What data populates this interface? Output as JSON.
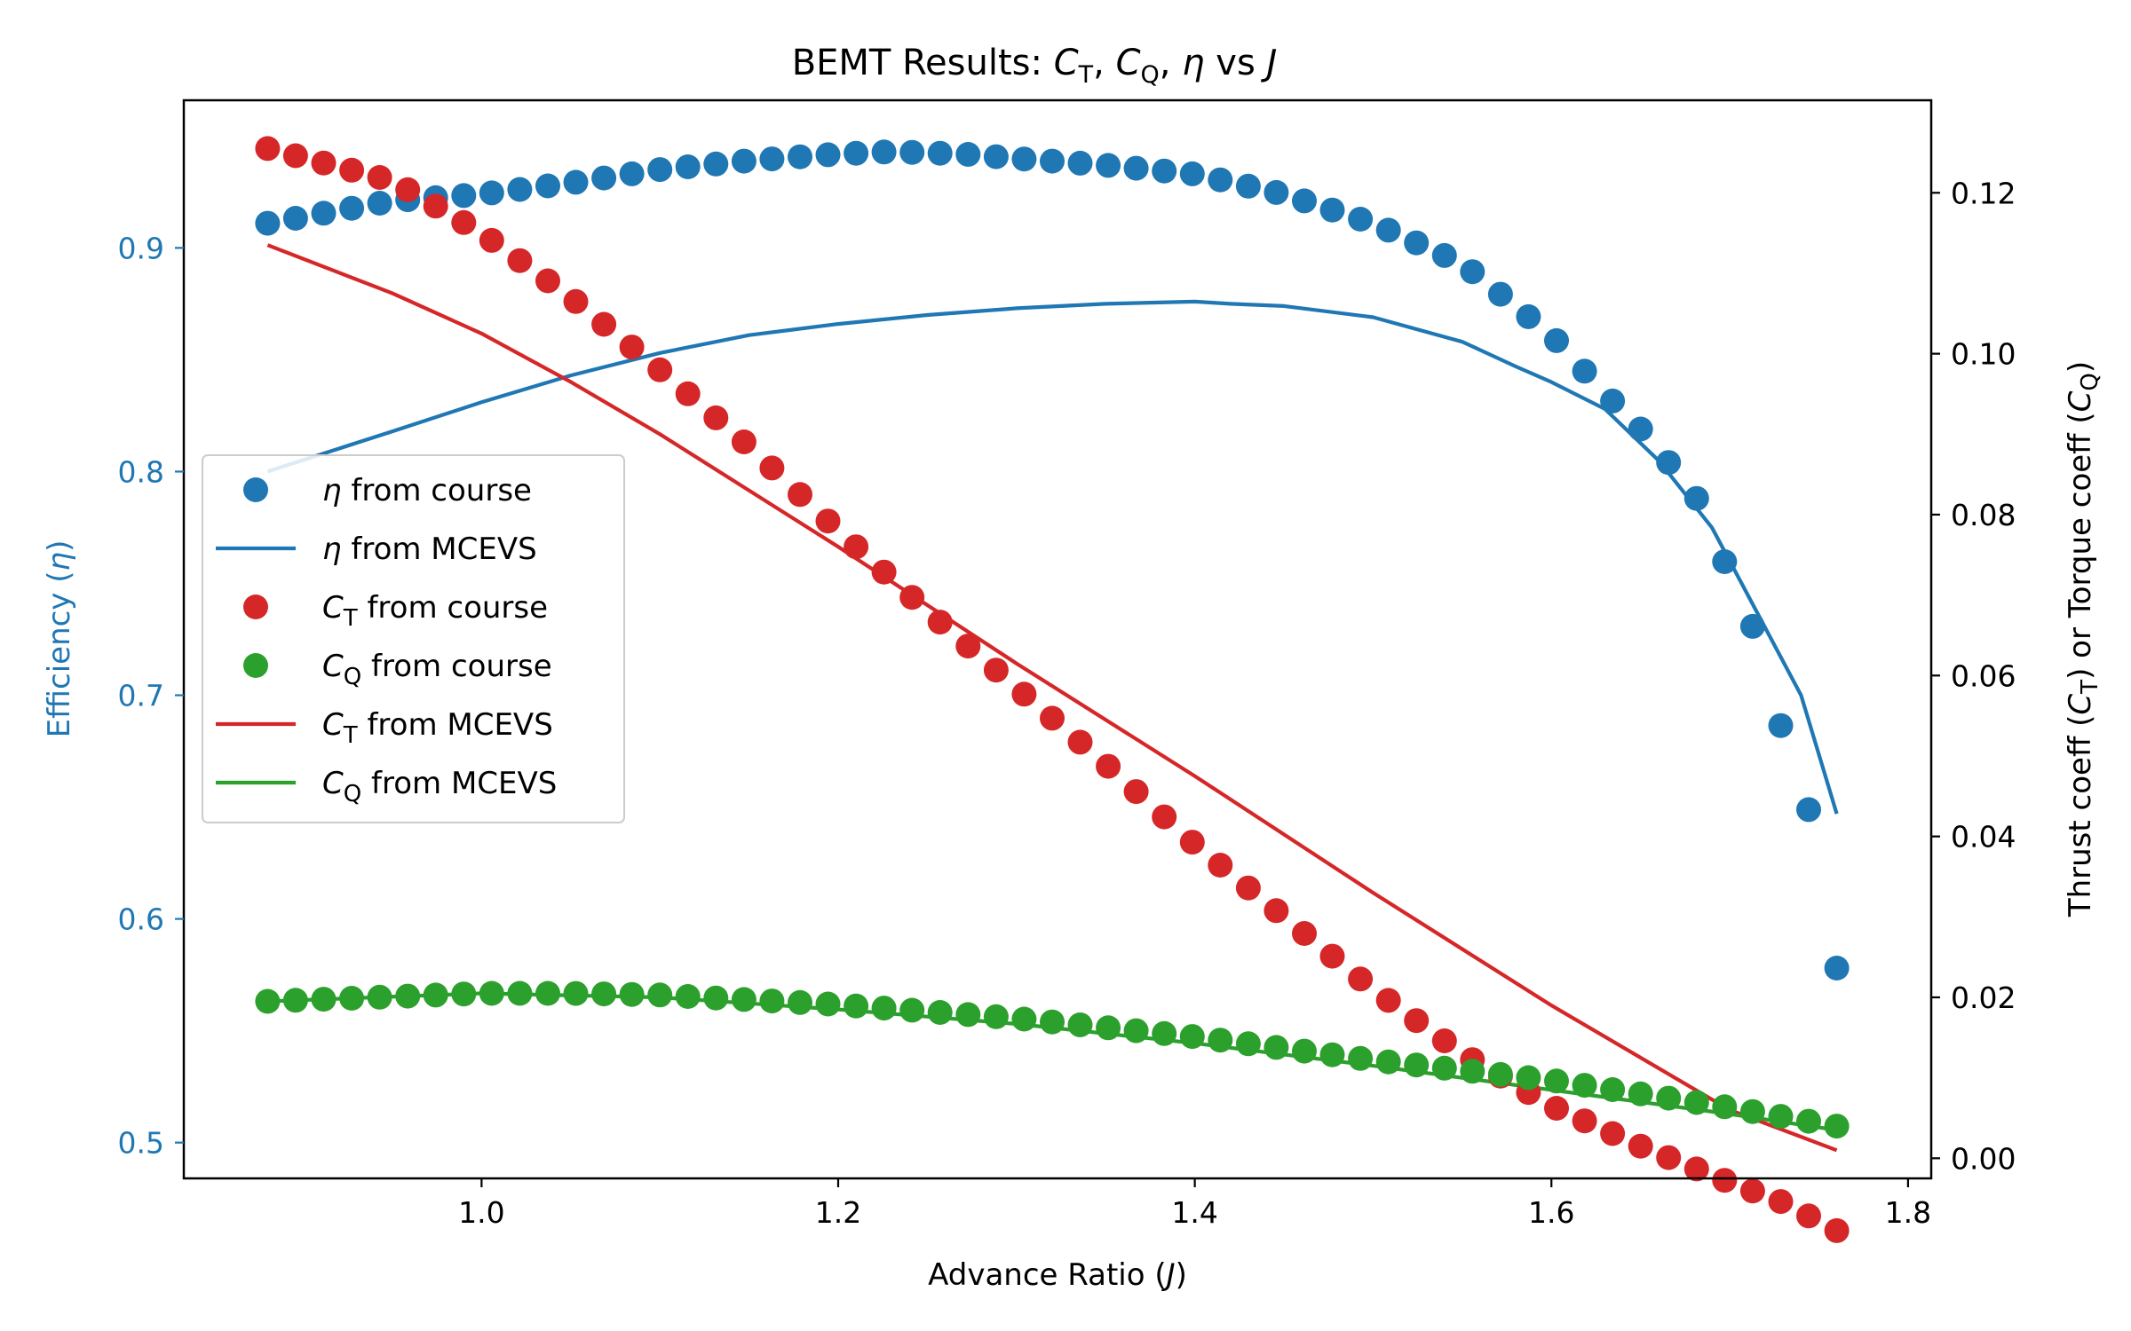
{
  "chart_data": {
    "type": "scatter",
    "title": "BEMT Results: C_T, C_Q, η vs J",
    "title_parts": {
      "prefix": "BEMT Results: ",
      "ct_var": "C",
      "ct_sub": "T",
      "sep1": ", ",
      "cq_var": "C",
      "cq_sub": "Q",
      "sep2": ", ",
      "eta": "η",
      "vs": " vs ",
      "j": "J"
    },
    "xlabel": "Advance Ratio (J)",
    "xlabel_parts": {
      "text": "Advance Ratio (",
      "var": "J",
      "close": ")"
    },
    "ylabel_left": "Efficiency (η)",
    "ylabel_left_parts": {
      "text": "Efficiency (",
      "var": "η",
      "close": ")"
    },
    "ylabel_right": "Thrust coeff (C_T) or Torque coeff (C_Q)",
    "ylabel_right_parts": {
      "a": "Thrust coeff (",
      "ct_var": "C",
      "ct_sub": "T",
      "b": ") or Torque coeff (",
      "cq_var": "C",
      "cq_sub": "Q",
      "c": ")"
    },
    "xlim": [
      0.833,
      1.813
    ],
    "ylim_left": [
      0.484,
      0.966
    ],
    "ylim_right": [
      -0.0025,
      0.1315
    ],
    "xticks": [
      "1.0",
      "1.2",
      "1.4",
      "1.6",
      "1.8"
    ],
    "yticks_left": [
      "0.5",
      "0.6",
      "0.7",
      "0.8",
      "0.9"
    ],
    "yticks_right": [
      "0.00",
      "0.02",
      "0.04",
      "0.06",
      "0.08",
      "0.10",
      "0.12"
    ],
    "grid": false,
    "legend_position": "center-left",
    "colors": {
      "eta": "#1f77b4",
      "ct": "#d62728",
      "cq": "#2ca02c",
      "left_axis": "#1f77b4"
    },
    "legend": [
      {
        "sym": "η",
        "sub": "",
        "text": " from course",
        "marker": "dot",
        "color": "#1f77b4"
      },
      {
        "sym": "η",
        "sub": "",
        "text": " from MCEVS",
        "marker": "line",
        "color": "#1f77b4"
      },
      {
        "sym": "C",
        "sub": "T",
        "text": " from course",
        "marker": "dot",
        "color": "#d62728"
      },
      {
        "sym": "C",
        "sub": "Q",
        "text": " from course",
        "marker": "dot",
        "color": "#2ca02c"
      },
      {
        "sym": "C",
        "sub": "T",
        "text": " from MCEVS",
        "marker": "line",
        "color": "#d62728"
      },
      {
        "sym": "C",
        "sub": "Q",
        "text": " from MCEVS",
        "marker": "line",
        "color": "#2ca02c"
      }
    ],
    "series": [
      {
        "name": "η from course",
        "axis": "left",
        "kind": "scatter",
        "color": "#1f77b4",
        "x_range": [
          0.88,
          1.76
        ],
        "n": 57,
        "x_keys": [
          0.88,
          0.95,
          1.0,
          1.05,
          1.1,
          1.15,
          1.2,
          1.23,
          1.27,
          1.3,
          1.35,
          1.4,
          1.45,
          1.5,
          1.55,
          1.6,
          1.63,
          1.65,
          1.67,
          1.69,
          1.7,
          1.72,
          1.73,
          1.75,
          1.76
        ],
        "y_keys": [
          0.911,
          0.921,
          0.924,
          0.929,
          0.935,
          0.939,
          0.942,
          0.943,
          0.942,
          0.94,
          0.937,
          0.933,
          0.924,
          0.911,
          0.893,
          0.861,
          0.835,
          0.819,
          0.8,
          0.779,
          0.752,
          0.719,
          0.681,
          0.636,
          0.578
        ]
      },
      {
        "name": "η from MCEVS",
        "axis": "left",
        "kind": "line",
        "color": "#1f77b4",
        "x": [
          0.88,
          0.95,
          1.0,
          1.05,
          1.1,
          1.15,
          1.2,
          1.25,
          1.3,
          1.35,
          1.4,
          1.42,
          1.45,
          1.5,
          1.55,
          1.58,
          1.6,
          1.63,
          1.66,
          1.69,
          1.71,
          1.74,
          1.76
        ],
        "y": [
          0.8,
          0.818,
          0.831,
          0.843,
          0.853,
          0.861,
          0.866,
          0.87,
          0.873,
          0.875,
          0.876,
          0.875,
          0.874,
          0.869,
          0.858,
          0.847,
          0.84,
          0.828,
          0.805,
          0.775,
          0.745,
          0.7,
          0.647
        ]
      },
      {
        "name": "C_T from course",
        "axis": "right",
        "kind": "scatter",
        "color": "#d62728",
        "x_range": [
          0.88,
          1.76
        ],
        "n": 57,
        "x_keys": [
          0.88,
          0.95,
          1.0,
          1.05,
          1.1,
          1.15,
          1.2,
          1.25,
          1.3,
          1.35,
          1.4,
          1.45,
          1.5,
          1.55,
          1.6,
          1.65,
          1.7,
          1.73,
          1.76
        ],
        "y_keys": [
          0.1255,
          0.1215,
          0.115,
          0.107,
          0.098,
          0.0885,
          0.078,
          0.068,
          0.0585,
          0.049,
          0.039,
          0.03,
          0.021,
          0.013,
          0.0065,
          0.0015,
          -0.003,
          -0.0055,
          -0.009
        ]
      },
      {
        "name": "C_Q from course",
        "axis": "right",
        "kind": "scatter",
        "color": "#2ca02c",
        "x_range": [
          0.88,
          1.76
        ],
        "n": 57,
        "x_keys": [
          0.88,
          1.0,
          1.05,
          1.1,
          1.2,
          1.3,
          1.4,
          1.5,
          1.6,
          1.7,
          1.76
        ],
        "y_keys": [
          0.0195,
          0.0205,
          0.0205,
          0.0203,
          0.0191,
          0.0174,
          0.0151,
          0.0122,
          0.0097,
          0.0063,
          0.004
        ]
      },
      {
        "name": "C_T from MCEVS",
        "axis": "right",
        "kind": "line",
        "color": "#d62728",
        "x": [
          0.88,
          0.95,
          1.0,
          1.05,
          1.1,
          1.2,
          1.3,
          1.4,
          1.5,
          1.6,
          1.7,
          1.76
        ],
        "y": [
          0.1135,
          0.1075,
          0.1025,
          0.0965,
          0.09,
          0.076,
          0.0615,
          0.0475,
          0.033,
          0.019,
          0.006,
          0.001
        ]
      },
      {
        "name": "C_Q from MCEVS",
        "axis": "right",
        "kind": "line",
        "color": "#2ca02c",
        "x": [
          0.88,
          1.0,
          1.1,
          1.2,
          1.3,
          1.4,
          1.5,
          1.6,
          1.7,
          1.76
        ],
        "y": [
          0.0195,
          0.0205,
          0.02,
          0.0185,
          0.0167,
          0.0143,
          0.0115,
          0.0085,
          0.0055,
          0.0035
        ]
      }
    ]
  }
}
